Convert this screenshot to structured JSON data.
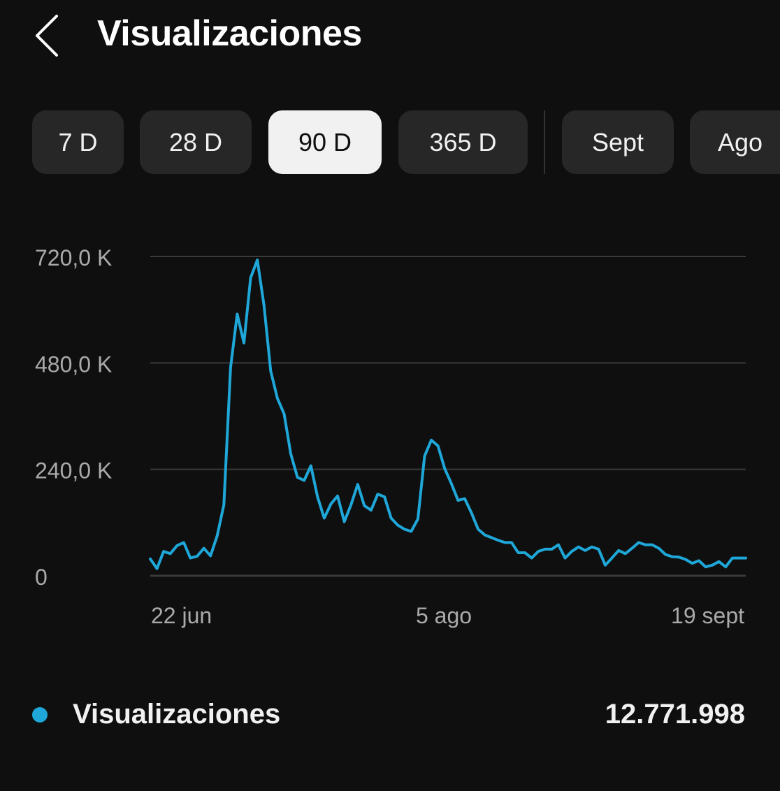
{
  "header": {
    "title": "Visualizaciones",
    "back_icon": "chevron-left-icon"
  },
  "range_filters": [
    {
      "label": "7 D",
      "active": false
    },
    {
      "label": "28 D",
      "active": false
    },
    {
      "label": "90 D",
      "active": true
    },
    {
      "label": "365 D",
      "active": false
    },
    {
      "label": "Sept",
      "active": false
    },
    {
      "label": "Ago",
      "active": false
    }
  ],
  "colors": {
    "background": "#0f0f0f",
    "series": "#1ea7d8",
    "grid": "#3a3a3a",
    "axis_text": "#aaaaaa",
    "chip": "#272727",
    "chip_active": "#f1f1f1"
  },
  "chart_data": {
    "type": "line",
    "title": "",
    "xlabel": "",
    "ylabel": "",
    "ylim": [
      0,
      720000
    ],
    "y_ticks": [
      0,
      240000,
      480000,
      720000
    ],
    "y_tick_labels": [
      "0",
      "240,0 K",
      "480,0 K",
      "720,0 K"
    ],
    "x_tick_labels": [
      "22 jun",
      "5 ago",
      "19 sept"
    ],
    "grid": true,
    "series": [
      {
        "name": "Visualizaciones",
        "values": [
          38000,
          16000,
          55000,
          50000,
          68000,
          75000,
          40000,
          44000,
          62000,
          45000,
          90000,
          160000,
          470000,
          590000,
          525000,
          672000,
          712000,
          610000,
          462000,
          400000,
          365000,
          275000,
          222000,
          215000,
          248000,
          178000,
          130000,
          162000,
          180000,
          122000,
          160000,
          206000,
          158000,
          148000,
          184000,
          178000,
          130000,
          114000,
          105000,
          100000,
          128000,
          270000,
          306000,
          293000,
          242000,
          208000,
          170000,
          174000,
          142000,
          105000,
          92000,
          86000,
          80000,
          75000,
          75000,
          52000,
          52000,
          40000,
          55000,
          60000,
          60000,
          70000,
          40000,
          55000,
          65000,
          57000,
          65000,
          60000,
          24000,
          40000,
          57000,
          50000,
          62000,
          75000,
          70000,
          70000,
          62000,
          48000,
          43000,
          42000,
          37000,
          28000,
          34000,
          20000,
          24000,
          32000,
          20000,
          40000,
          40000,
          40000
        ]
      }
    ],
    "total_label": "Visualizaciones",
    "total_value": "12.771.998"
  }
}
